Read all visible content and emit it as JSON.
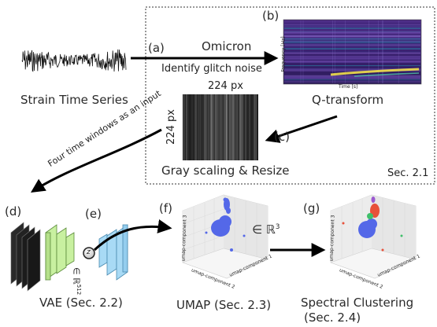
{
  "labels": {
    "strain": "Strain Time Series",
    "a": "(a)",
    "omicron": "Omicron",
    "identify": "Identify glitch noise",
    "b": "(b)",
    "qt_ylabel": "Frequency [Hz]",
    "qt_xlabel": "Time [s]",
    "qtransform": "Q-transform",
    "px_top": "224 px",
    "px_side": "224 px",
    "c": "(c)",
    "gray": "Gray scaling & Resize",
    "sec21": "Sec. 2.1",
    "four_windows": "Four time windows as an input",
    "d": "(d)",
    "e": "(e)",
    "z": "z",
    "z_space": "∈ ℝ",
    "z_dim": "512",
    "vae": "VAE (Sec. 2.2)",
    "f": "(f)",
    "r3": "∈ ℝ",
    "r3_exp": "3",
    "umap_ax1": "umap-component 1",
    "umap_ax2": "umap-component 2",
    "umap_ax3": "umap-component 3",
    "umap": "UMAP (Sec. 2.3)",
    "g": "(g)",
    "spectral": "Spectral Clustering",
    "sec24": "(Sec. 2.4)"
  },
  "colors": {
    "umap_points": "#5468e8",
    "cluster_red": "#e8513a",
    "cluster_green": "#3fbf6a",
    "cluster_purple": "#9b59d0",
    "vae_green": "#c8f0a0",
    "vae_blue": "#a8daf5",
    "qt_background": "#3b1f6e",
    "qt_highlight": "#f2e14a"
  }
}
